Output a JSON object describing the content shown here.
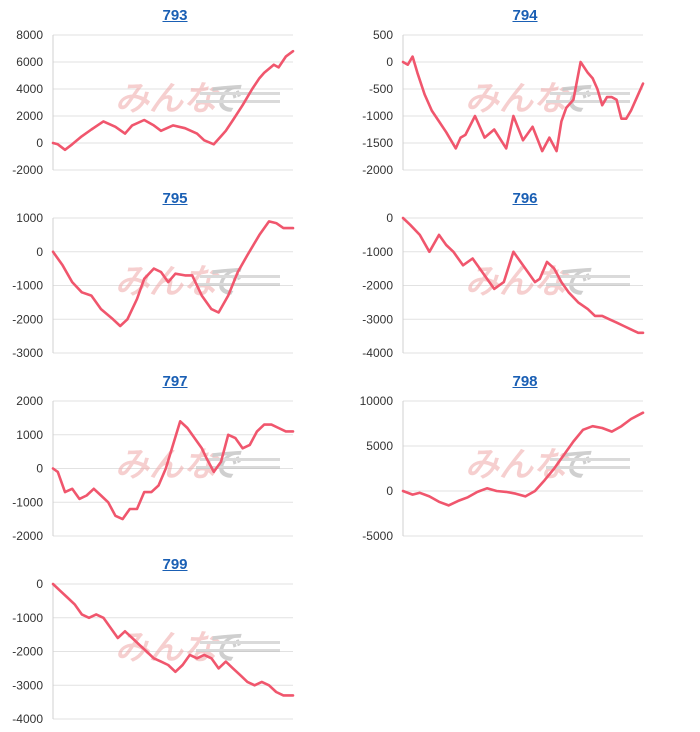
{
  "chart_data": [
    {
      "type": "line",
      "title": "793",
      "ylim": [
        -2000,
        8000
      ],
      "yticks": [
        8000,
        6000,
        4000,
        2000,
        0,
        -2000
      ],
      "xlim": [
        0,
        100
      ],
      "grid": true,
      "legend": "none",
      "series": [
        {
          "x": [
            0,
            2,
            5,
            8,
            12,
            16,
            21,
            26,
            30,
            33,
            38,
            42,
            45,
            50,
            55,
            60,
            63,
            67,
            70,
            72,
            75,
            79,
            83,
            86,
            88,
            90,
            92,
            94,
            97,
            100
          ],
          "y": [
            0,
            -100,
            -500,
            -100,
            500,
            1000,
            1600,
            1200,
            700,
            1300,
            1700,
            1300,
            900,
            1300,
            1100,
            700,
            200,
            -100,
            500,
            900,
            1700,
            2800,
            4000,
            4800,
            5200,
            5500,
            5800,
            5600,
            6400,
            6800
          ]
        }
      ]
    },
    {
      "type": "line",
      "title": "794",
      "ylim": [
        -2000,
        500
      ],
      "yticks": [
        500,
        0,
        -500,
        -1000,
        -1500,
        -2000
      ],
      "xlim": [
        0,
        100
      ],
      "grid": true,
      "legend": "none",
      "series": [
        {
          "x": [
            0,
            2,
            4,
            6,
            9,
            12,
            15,
            18,
            22,
            24,
            26,
            30,
            34,
            38,
            43,
            46,
            50,
            54,
            58,
            61,
            64,
            66,
            68,
            71,
            74,
            77,
            79,
            81,
            83,
            85,
            87,
            89,
            91,
            93,
            95,
            97,
            100
          ],
          "y": [
            0,
            -50,
            100,
            -200,
            -600,
            -900,
            -1100,
            -1300,
            -1600,
            -1400,
            -1350,
            -1000,
            -1400,
            -1250,
            -1600,
            -1000,
            -1450,
            -1200,
            -1650,
            -1400,
            -1650,
            -1100,
            -850,
            -700,
            0,
            -200,
            -300,
            -500,
            -800,
            -650,
            -650,
            -700,
            -1050,
            -1050,
            -900,
            -700,
            -400
          ]
        }
      ]
    },
    {
      "type": "line",
      "title": "795",
      "ylim": [
        -3000,
        1000
      ],
      "yticks": [
        1000,
        0,
        -1000,
        -2000,
        -3000
      ],
      "xlim": [
        0,
        100
      ],
      "grid": true,
      "legend": "none",
      "series": [
        {
          "x": [
            0,
            4,
            8,
            12,
            16,
            20,
            25,
            28,
            31,
            35,
            38,
            42,
            45,
            48,
            51,
            55,
            58,
            62,
            66,
            69,
            73,
            77,
            81,
            86,
            90,
            93,
            96,
            100
          ],
          "y": [
            0,
            -400,
            -900,
            -1200,
            -1300,
            -1700,
            -2000,
            -2200,
            -2000,
            -1400,
            -800,
            -500,
            -600,
            -900,
            -650,
            -700,
            -700,
            -1300,
            -1700,
            -1800,
            -1300,
            -600,
            -100,
            500,
            900,
            850,
            700,
            700
          ]
        }
      ]
    },
    {
      "type": "line",
      "title": "796",
      "ylim": [
        -4000,
        0
      ],
      "yticks": [
        0,
        -1000,
        -2000,
        -3000,
        -4000
      ],
      "xlim": [
        0,
        100
      ],
      "grid": true,
      "legend": "none",
      "series": [
        {
          "x": [
            0,
            3,
            7,
            11,
            15,
            18,
            21,
            25,
            29,
            33,
            36,
            38,
            42,
            46,
            49,
            52,
            55,
            57,
            60,
            63,
            66,
            69,
            73,
            77,
            80,
            83,
            86,
            89,
            92,
            95,
            98,
            100
          ],
          "y": [
            0,
            -200,
            -500,
            -1000,
            -500,
            -800,
            -1000,
            -1400,
            -1200,
            -1600,
            -1900,
            -2100,
            -1900,
            -1000,
            -1300,
            -1600,
            -1900,
            -1800,
            -1300,
            -1500,
            -1900,
            -2200,
            -2500,
            -2700,
            -2900,
            -2900,
            -3000,
            -3100,
            -3200,
            -3300,
            -3400,
            -3400
          ]
        }
      ]
    },
    {
      "type": "line",
      "title": "797",
      "ylim": [
        -2000,
        2000
      ],
      "yticks": [
        2000,
        1000,
        0,
        -1000,
        -2000
      ],
      "xlim": [
        0,
        100
      ],
      "grid": true,
      "legend": "none",
      "series": [
        {
          "x": [
            0,
            2,
            5,
            8,
            11,
            14,
            17,
            20,
            23,
            26,
            29,
            32,
            35,
            38,
            41,
            44,
            47,
            50,
            53,
            56,
            59,
            62,
            64,
            67,
            70,
            73,
            76,
            79,
            82,
            85,
            88,
            91,
            94,
            97,
            100
          ],
          "y": [
            0,
            -100,
            -700,
            -600,
            -900,
            -800,
            -600,
            -800,
            -1000,
            -1400,
            -1500,
            -1200,
            -1200,
            -700,
            -700,
            -500,
            0,
            700,
            1400,
            1200,
            900,
            600,
            300,
            -100,
            200,
            1000,
            900,
            600,
            700,
            1100,
            1300,
            1300,
            1200,
            1100,
            1100
          ]
        }
      ]
    },
    {
      "type": "line",
      "title": "798",
      "ylim": [
        -5000,
        10000
      ],
      "yticks": [
        10000,
        5000,
        0,
        -5000
      ],
      "xlim": [
        0,
        100
      ],
      "grid": true,
      "legend": "none",
      "series": [
        {
          "x": [
            0,
            4,
            7,
            11,
            15,
            19,
            23,
            27,
            31,
            35,
            39,
            43,
            47,
            51,
            55,
            59,
            63,
            67,
            71,
            75,
            79,
            83,
            87,
            91,
            95,
            100
          ],
          "y": [
            0,
            -400,
            -200,
            -600,
            -1200,
            -1600,
            -1100,
            -700,
            -100,
            300,
            0,
            -100,
            -300,
            -600,
            0,
            1200,
            2500,
            4000,
            5500,
            6800,
            7200,
            7000,
            6600,
            7200,
            8000,
            8700
          ]
        }
      ]
    },
    {
      "type": "line",
      "title": "799",
      "ylim": [
        -4000,
        0
      ],
      "yticks": [
        0,
        -1000,
        -2000,
        -3000,
        -4000
      ],
      "xlim": [
        0,
        100
      ],
      "grid": true,
      "legend": "none",
      "series": [
        {
          "x": [
            0,
            3,
            6,
            9,
            12,
            15,
            18,
            21,
            24,
            27,
            30,
            33,
            36,
            39,
            42,
            45,
            48,
            51,
            54,
            57,
            60,
            63,
            66,
            69,
            72,
            75,
            78,
            81,
            84,
            87,
            90,
            93,
            96,
            100
          ],
          "y": [
            0,
            -200,
            -400,
            -600,
            -900,
            -1000,
            -900,
            -1000,
            -1300,
            -1600,
            -1400,
            -1600,
            -1800,
            -2000,
            -2200,
            -2300,
            -2400,
            -2600,
            -2400,
            -2100,
            -2200,
            -2100,
            -2200,
            -2500,
            -2300,
            -2500,
            -2700,
            -2900,
            -3000,
            -2900,
            -3000,
            -3200,
            -3300,
            -3300
          ]
        }
      ]
    }
  ]
}
